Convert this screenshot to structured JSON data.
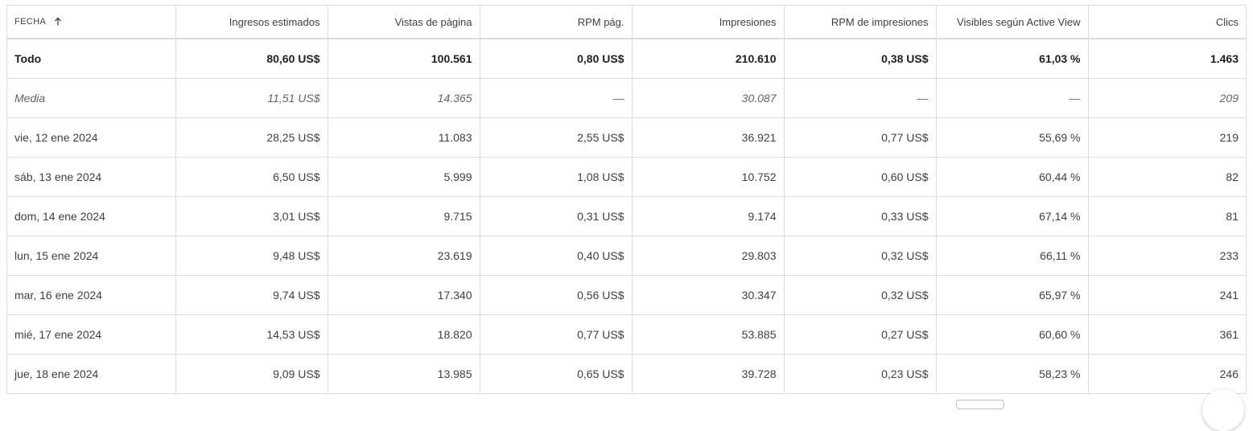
{
  "table": {
    "columns": [
      "FECHA",
      "Ingresos estimados",
      "Vistas de página",
      "RPM pág.",
      "Impresiones",
      "RPM de impresiones",
      "Visibles según Active View",
      "Clics"
    ],
    "total": [
      "Todo",
      "80,60 US$",
      "100.561",
      "0,80 US$",
      "210.610",
      "0,38 US$",
      "61,03 %",
      "1.463"
    ],
    "average": [
      "Media",
      "11,51 US$",
      "14.365",
      "—",
      "30.087",
      "—",
      "—",
      "209"
    ],
    "rows": [
      [
        "vie, 12 ene 2024",
        "28,25 US$",
        "11.083",
        "2,55 US$",
        "36.921",
        "0,77 US$",
        "55,69 %",
        "219"
      ],
      [
        "sáb, 13 ene 2024",
        "6,50 US$",
        "5.999",
        "1,08 US$",
        "10.752",
        "0,60 US$",
        "60,44 %",
        "82"
      ],
      [
        "dom, 14 ene 2024",
        "3,01 US$",
        "9.715",
        "0,31 US$",
        "9.174",
        "0,33 US$",
        "67,14 %",
        "81"
      ],
      [
        "lun, 15 ene 2024",
        "9,48 US$",
        "23.619",
        "0,40 US$",
        "29.803",
        "0,32 US$",
        "66,11 %",
        "233"
      ],
      [
        "mar, 16 ene 2024",
        "9,74 US$",
        "17.340",
        "0,56 US$",
        "30.347",
        "0,32 US$",
        "65,97 %",
        "241"
      ],
      [
        "mié, 17 ene 2024",
        "14,53 US$",
        "18.820",
        "0,77 US$",
        "53.885",
        "0,27 US$",
        "60,60 %",
        "361"
      ],
      [
        "jue, 18 ene 2024",
        "9,09 US$",
        "13.985",
        "0,65 US$",
        "39.728",
        "0,23 US$",
        "58,23 %",
        "246"
      ]
    ]
  },
  "icons": {
    "sort": "arrow-up-icon"
  },
  "colors": {
    "border": "#dadce0",
    "text": "#3c4043",
    "muted": "#5f6368"
  }
}
